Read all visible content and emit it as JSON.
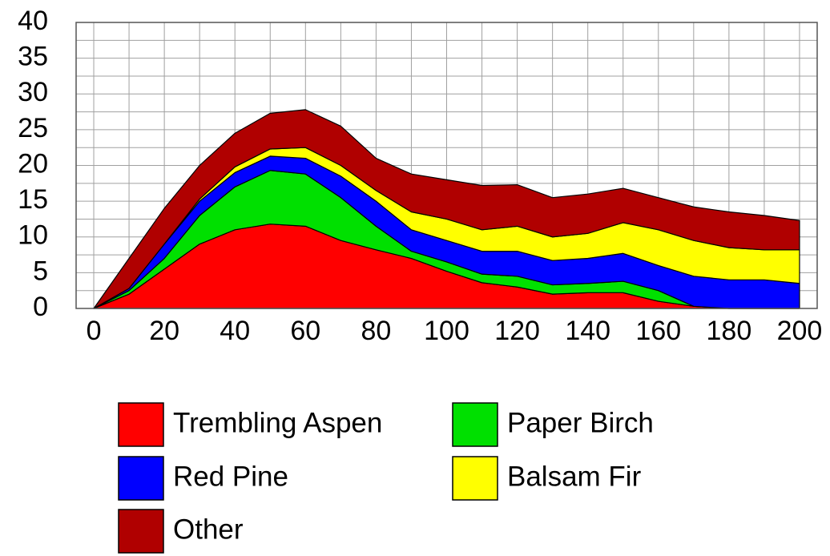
{
  "chart_data": {
    "type": "stacked_area",
    "x": [
      0,
      10,
      20,
      30,
      40,
      50,
      60,
      70,
      80,
      90,
      100,
      110,
      120,
      130,
      140,
      150,
      160,
      170,
      180,
      190,
      200
    ],
    "series": [
      {
        "name": "Trembling Aspen",
        "color": "#ff0000",
        "values": [
          0,
          2,
          5.5,
          9,
          11,
          11.8,
          11.5,
          9.5,
          8.2,
          7,
          5.2,
          3.6,
          3,
          2,
          2.2,
          2.2,
          1,
          0.3,
          0,
          0,
          0
        ]
      },
      {
        "name": "Paper Birch",
        "color": "#00e000",
        "values": [
          0,
          0.5,
          1.5,
          4,
          6,
          7.5,
          7.3,
          6,
          3.3,
          1,
          1.3,
          1.2,
          1.5,
          1.3,
          1.3,
          1.6,
          1.5,
          0,
          0,
          0,
          0
        ]
      },
      {
        "name": "Red Pine",
        "color": "#0000ff",
        "values": [
          0,
          0.3,
          2,
          2,
          2,
          2,
          2.2,
          3,
          3.5,
          3,
          3,
          3.2,
          3.5,
          3.4,
          3.5,
          3.9,
          3.5,
          4.2,
          4,
          4,
          3.5
        ]
      },
      {
        "name": "Balsam Fir",
        "color": "#ffff00",
        "values": [
          0,
          0,
          0,
          0.3,
          0.8,
          1,
          1.5,
          1.5,
          1.5,
          2.5,
          3,
          3,
          3.5,
          3.3,
          3.5,
          4.3,
          5,
          5,
          4.5,
          4.2,
          4.7
        ]
      },
      {
        "name": "Other",
        "color": "#b00000",
        "values": [
          0,
          4.2,
          5,
          4.7,
          4.7,
          5,
          5.3,
          5.5,
          4.5,
          5.3,
          5.5,
          6.2,
          5.8,
          5.5,
          5.5,
          4.8,
          4.5,
          4.7,
          5,
          4.8,
          4.1
        ]
      }
    ],
    "xlim": [
      -5,
      205
    ],
    "xticks": [
      0,
      20,
      40,
      60,
      80,
      100,
      120,
      140,
      160,
      180,
      200
    ],
    "ylim": [
      0,
      40
    ],
    "yticks": [
      0,
      5,
      10,
      15,
      20,
      25,
      30,
      35,
      40
    ],
    "grid": true
  }
}
